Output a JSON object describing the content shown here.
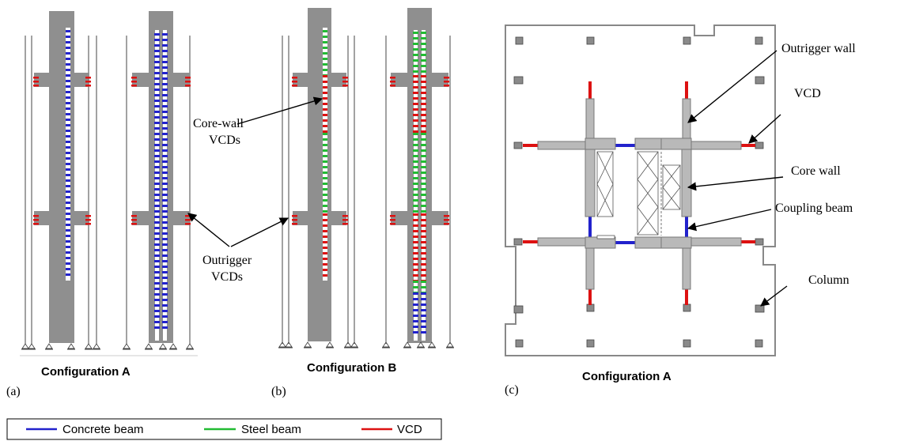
{
  "colors": {
    "concrete_beam": "#2222cc",
    "steel_beam": "#22bb33",
    "vcd": "#dd1111",
    "wall_fill": "#8f8f8f",
    "plan_fill": "#b9b9b9",
    "plan_outline": "#808080",
    "column_fill": "#8a8a8a"
  },
  "panel_a": {
    "caption": "Configuration A",
    "tag": "(a)"
  },
  "panel_b": {
    "caption": "Configuration B",
    "tag": "(b)",
    "label_core_wall_vcds_1": "Core-wall",
    "label_core_wall_vcds_2": "VCDs",
    "label_outrigger_vcds_1": "Outrigger",
    "label_outrigger_vcds_2": "VCDs"
  },
  "panel_c": {
    "caption": "Configuration A",
    "tag": "(c)",
    "label_outrigger_wall": "Outrigger wall",
    "label_vcd": "VCD",
    "label_core_wall": "Core wall",
    "label_coupling_beam": "Coupling beam",
    "label_column": "Column"
  },
  "legend": {
    "items": [
      {
        "label": "Concrete beam",
        "color_key": "concrete_beam"
      },
      {
        "label": "Steel beam",
        "color_key": "steel_beam"
      },
      {
        "label": "VCD",
        "color_key": "vcd"
      }
    ]
  }
}
